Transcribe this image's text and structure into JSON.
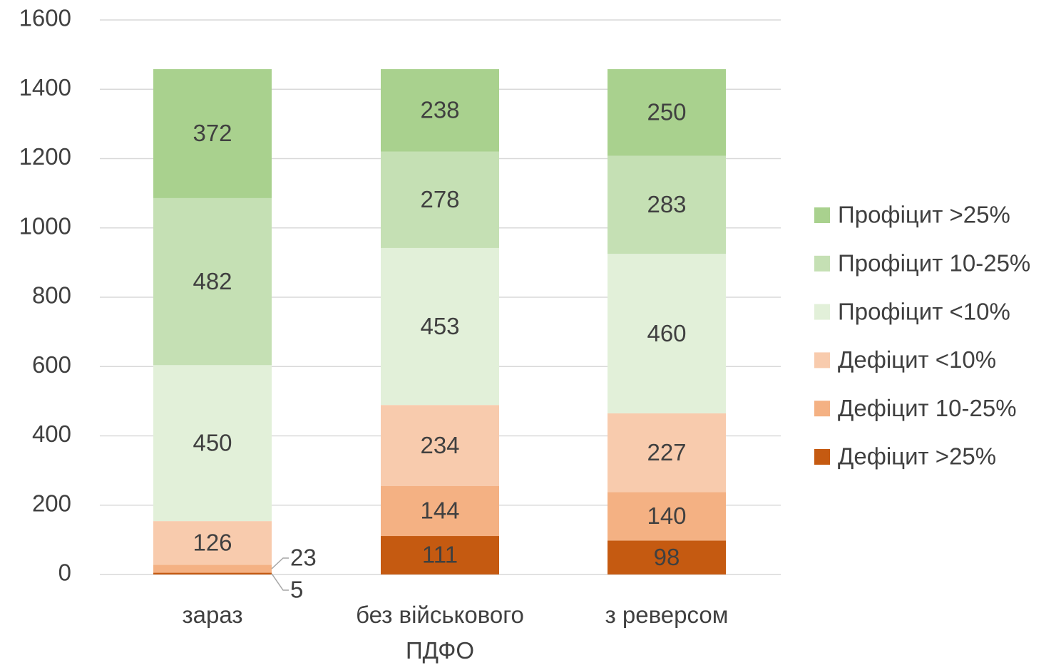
{
  "chart_data": {
    "type": "stacked_bar",
    "categories": [
      "зараз",
      "без військового ПДФО",
      "з реверсом"
    ],
    "series": [
      {
        "name": "Дефіцит >25%",
        "color": "#c55a11",
        "values": [
          5,
          111,
          98
        ]
      },
      {
        "name": "Дефіцит 10-25%",
        "color": "#f4b183",
        "values": [
          23,
          144,
          140
        ]
      },
      {
        "name": "Дефіцит <10%",
        "color": "#f8cbad",
        "values": [
          126,
          234,
          227
        ]
      },
      {
        "name": "Профіцит <10%",
        "color": "#e2f0d9",
        "values": [
          450,
          453,
          460
        ]
      },
      {
        "name": "Профіцит 10-25%",
        "color": "#c5e0b4",
        "values": [
          482,
          278,
          283
        ]
      },
      {
        "name": "Профіцит >25%",
        "color": "#a9d18e",
        "values": [
          372,
          238,
          250
        ]
      }
    ],
    "ylim": [
      0,
      1600
    ],
    "yticks": [
      0,
      200,
      400,
      600,
      800,
      1000,
      1200,
      1400,
      1600
    ],
    "grid": true,
    "legend": "right"
  }
}
